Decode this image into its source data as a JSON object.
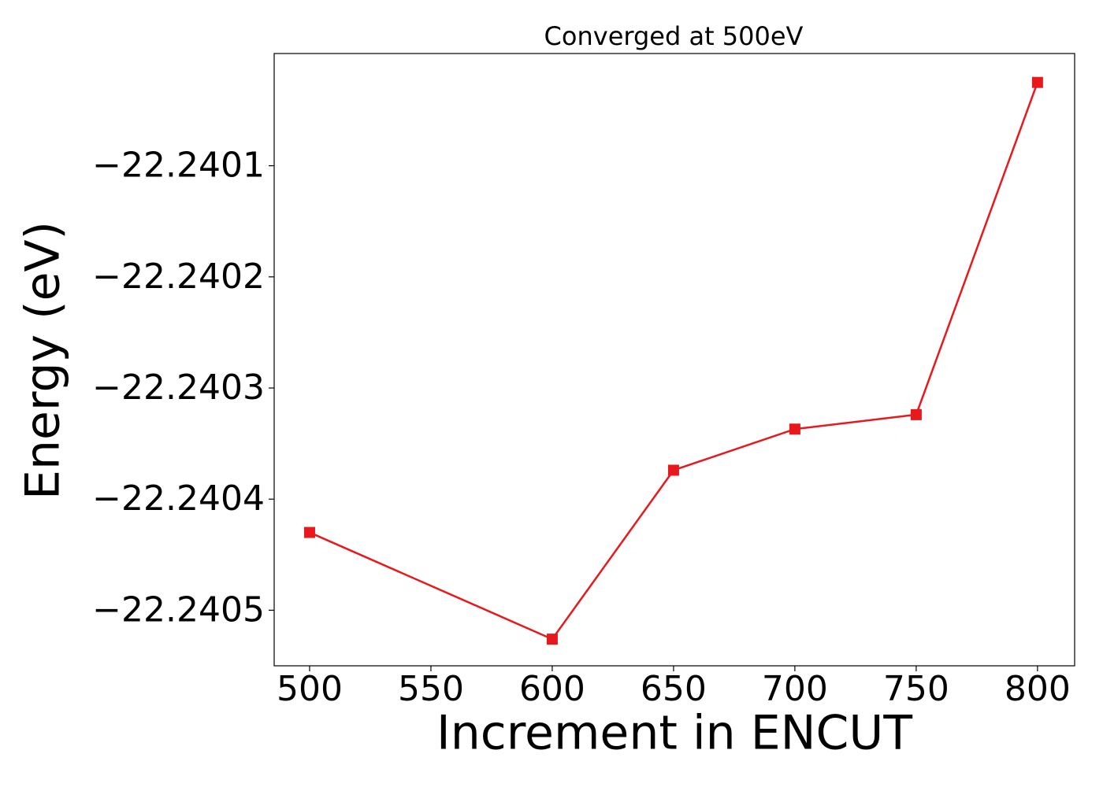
{
  "chart_data": {
    "type": "line",
    "title": "Converged at 500eV",
    "x_label": "Increment in ENCUT",
    "y_label": "Energy (eV)",
    "x": [
      500,
      600,
      650,
      700,
      750,
      800
    ],
    "series": [
      {
        "color": "#e8191c",
        "marker": "square",
        "values": [
          -22.24043,
          -22.240526,
          -22.240374,
          -22.240337,
          -22.240324,
          -22.240025
        ]
      }
    ],
    "xlim": [
      485.4,
      815.3
    ],
    "ylim": [
      -22.24055,
      -22.239999
    ],
    "xticks": [
      500,
      550,
      600,
      650,
      700,
      750,
      800
    ],
    "yticks": [
      {
        "value": -22.2401,
        "label": "−22.2401"
      },
      {
        "value": -22.2402,
        "label": "−22.2402"
      },
      {
        "value": -22.2403,
        "label": "−22.2403"
      },
      {
        "value": -22.2404,
        "label": "−22.2404"
      },
      {
        "value": -22.2405,
        "label": "−22.2405"
      }
    ],
    "grid": false
  }
}
